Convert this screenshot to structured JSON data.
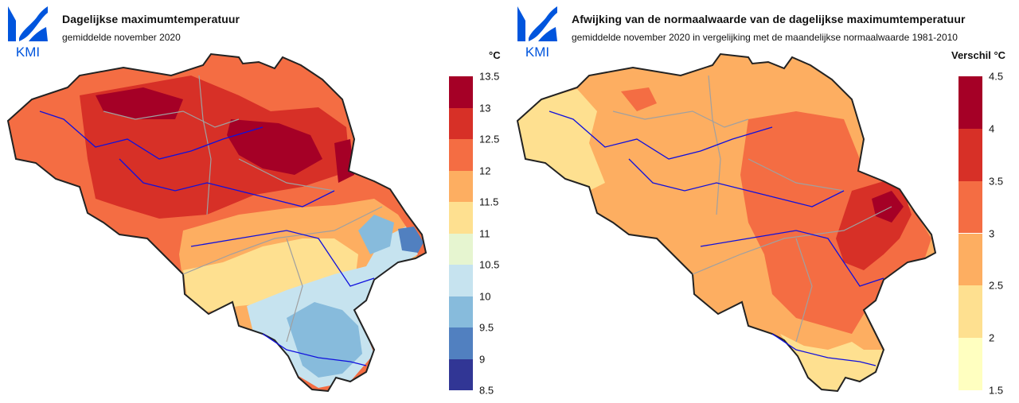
{
  "logo": {
    "text": "KMI",
    "icon": "kmi-logo-icon",
    "color": "#0055dd"
  },
  "left": {
    "title": "Dagelijkse maximumtemperatuur",
    "subtitle": "gemiddelde november 2020",
    "unit": "°C",
    "legend": {
      "ticks": [
        "13.5",
        "13",
        "12.5",
        "12",
        "11.5",
        "11",
        "10.5",
        "10",
        "9.5",
        "9",
        "8.5"
      ],
      "colors": [
        "#a50026",
        "#d73027",
        "#f46d43",
        "#fdae61",
        "#fee090",
        "#e6f5d0",
        "#c6e3ef",
        "#87bbdc",
        "#5180c0",
        "#313695"
      ]
    }
  },
  "right": {
    "title": "Afwijking van de normaalwaarde van de dagelijkse maximumtemperatuur",
    "subtitle": "gemiddelde november 2020 in vergelijking met de maandelijkse normaalwaarde 1981-2010",
    "unit": "Verschil °C",
    "legend": {
      "ticks": [
        "4.5",
        "4",
        "3.5",
        "3",
        "2.5",
        "2",
        "1.5"
      ],
      "colors": [
        "#a50026",
        "#d73027",
        "#f46d43",
        "#fdae61",
        "#fee090",
        "#ffffc0"
      ]
    }
  }
}
